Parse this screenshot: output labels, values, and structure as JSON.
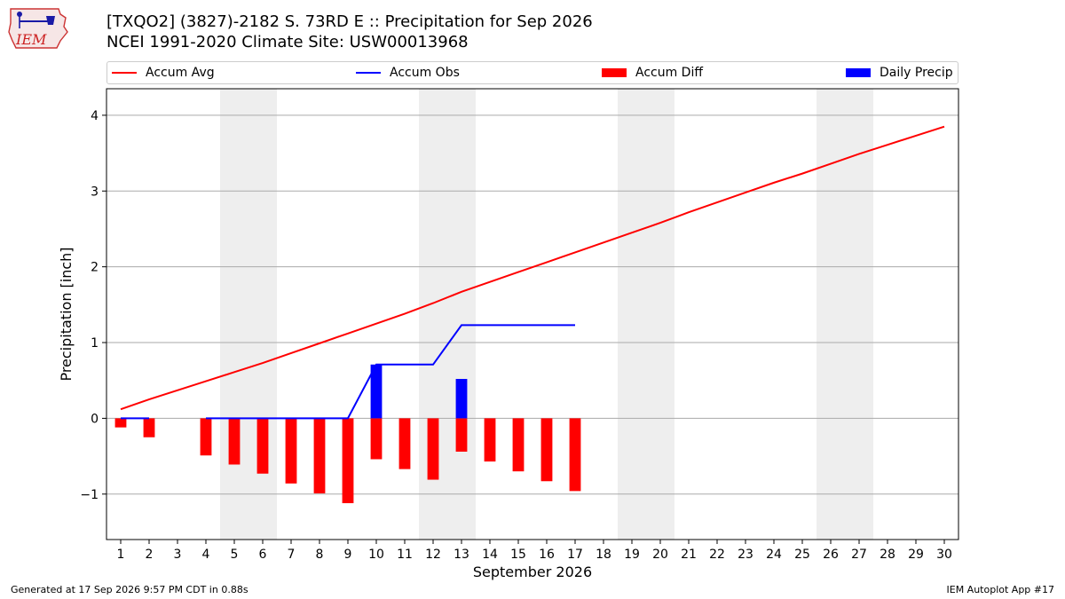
{
  "header": {
    "title_line1": "[TXQO2] (3827)-2182 S. 73RD E :: Precipitation for Sep 2026",
    "title_line2": "NCEI 1991-2020 Climate Site: USW00013968",
    "logo_text": "IEM"
  },
  "footer": {
    "generated": "Generated at 17 Sep 2026 9:57 PM CDT in 0.88s",
    "app": "IEM Autoplot App #17"
  },
  "colors": {
    "accum_avg": "#ff0000",
    "accum_obs": "#0000ff",
    "accum_diff": "#ff0000",
    "daily_precip": "#0000ff",
    "weekend_shade": "#eeeeee",
    "grid": "#aaaaaa"
  },
  "chart_data": {
    "type": "bar",
    "xlabel": "September 2026",
    "ylabel": "Precipitation [inch]",
    "xlim": [
      0.5,
      30.5
    ],
    "ylim": [
      -1.6,
      4.35
    ],
    "y_ticks": [
      -1,
      0,
      1,
      2,
      3,
      4
    ],
    "y_tick_labels": [
      "−1",
      "0",
      "1",
      "2",
      "3",
      "4"
    ],
    "x_ticks": [
      1,
      2,
      3,
      4,
      5,
      6,
      7,
      8,
      9,
      10,
      11,
      12,
      13,
      14,
      15,
      16,
      17,
      18,
      19,
      20,
      21,
      22,
      23,
      24,
      25,
      26,
      27,
      28,
      29,
      30
    ],
    "grid": true,
    "legend_position": "top",
    "weekend_shading": [
      [
        5,
        6
      ],
      [
        12,
        13
      ],
      [
        19,
        20
      ],
      [
        26,
        27
      ]
    ],
    "series": [
      {
        "name": "Accum Avg",
        "kind": "line",
        "x": [
          1,
          2,
          3,
          4,
          5,
          6,
          7,
          8,
          9,
          10,
          11,
          12,
          13,
          14,
          15,
          16,
          17,
          18,
          19,
          20,
          21,
          22,
          23,
          24,
          25,
          26,
          27,
          28,
          29,
          30
        ],
        "values": [
          0.12,
          0.25,
          0.37,
          0.49,
          0.61,
          0.73,
          0.86,
          0.99,
          1.12,
          1.25,
          1.38,
          1.52,
          1.67,
          1.8,
          1.93,
          2.06,
          2.19,
          2.32,
          2.45,
          2.58,
          2.72,
          2.85,
          2.98,
          3.11,
          3.23,
          3.36,
          3.49,
          3.61,
          3.73,
          3.85
        ]
      },
      {
        "name": "Accum Obs",
        "kind": "line",
        "segments": [
          {
            "x": [
              1,
              2
            ],
            "values": [
              0,
              0
            ]
          },
          {
            "x": [
              4,
              5,
              6,
              7,
              8,
              9,
              10,
              11,
              12,
              13,
              14,
              15,
              16,
              17
            ],
            "values": [
              0,
              0,
              0,
              0,
              0,
              0,
              0.71,
              0.71,
              0.71,
              1.23,
              1.23,
              1.23,
              1.23,
              1.23
            ]
          }
        ]
      },
      {
        "name": "Accum Diff",
        "kind": "bar",
        "x": [
          1,
          2,
          4,
          5,
          6,
          7,
          8,
          9,
          10,
          11,
          12,
          13,
          14,
          15,
          16,
          17
        ],
        "values": [
          -0.12,
          -0.25,
          -0.49,
          -0.61,
          -0.73,
          -0.86,
          -0.99,
          -1.12,
          -0.54,
          -0.67,
          -0.81,
          -0.44,
          -0.57,
          -0.7,
          -0.83,
          -0.96
        ]
      },
      {
        "name": "Daily Precip",
        "kind": "bar",
        "x": [
          10,
          13
        ],
        "values": [
          0.71,
          0.52
        ]
      }
    ]
  }
}
